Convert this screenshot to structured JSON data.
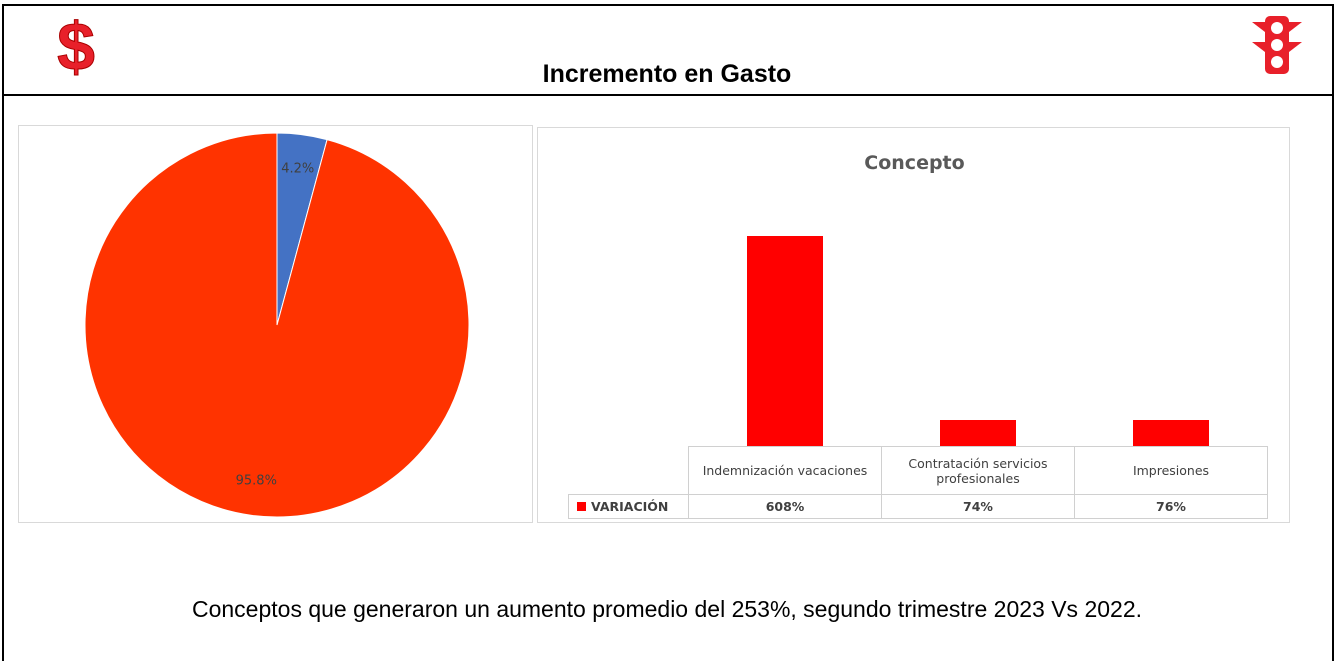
{
  "header": {
    "title": "Incremento en Gasto"
  },
  "chart_data": [
    {
      "type": "pie",
      "values": [
        4.2,
        95.8
      ],
      "value_labels": [
        "4.2%",
        "95.8%"
      ],
      "colors": [
        "#4472c4",
        "#ff3300"
      ]
    },
    {
      "type": "bar",
      "title": "Concepto",
      "categories": [
        "Indemnización vacaciones",
        "Contratación servicios profesionales",
        "Impresiones"
      ],
      "series": [
        {
          "name": "VARIACIÓN",
          "color": "#ff0000",
          "values": [
            608,
            74,
            76
          ],
          "value_labels": [
            "608%",
            "74%",
            "76%"
          ]
        }
      ]
    }
  ],
  "footer": {
    "text": "Conceptos que generaron un aumento promedio del 253%, segundo trimestre 2023 Vs 2022."
  }
}
